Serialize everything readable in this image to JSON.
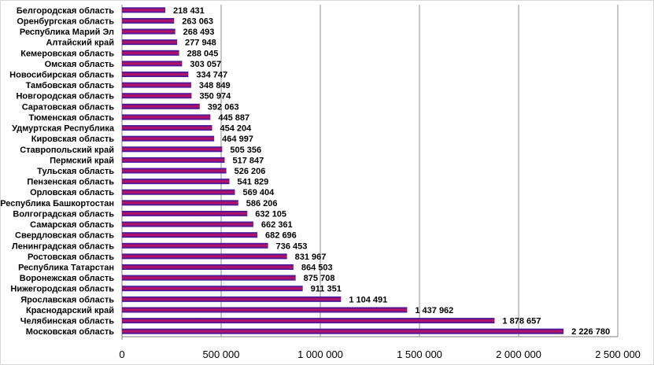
{
  "chart_data": {
    "type": "bar",
    "orientation": "horizontal",
    "categories": [
      "Белгородская область",
      "Оренбургская область",
      "Республика Марий Эл",
      "Алтайский край",
      "Кемеровская область",
      "Омская область",
      "Новосибирская область",
      "Тамбовская область",
      "Новгородская область",
      "Саратовская область",
      "Тюменская область",
      "Удмуртская Республика",
      "Кировская область",
      "Ставропольский край",
      "Пермский край",
      "Тульская область",
      "Пензенская область",
      "Орловская область",
      "Республика Башкортостан",
      "Волгоградская область",
      "Самарская область",
      "Свердловская область",
      "Ленинградская область",
      "Ростовская область",
      "Республика Татарстан",
      "Воронежская область",
      "Нижегородская область",
      "Ярославская область",
      "Краснодарский край",
      "Челябинская область",
      "Московская область"
    ],
    "values": [
      218431,
      263063,
      268493,
      277948,
      288045,
      303057,
      334747,
      348849,
      350974,
      392063,
      445887,
      454204,
      464997,
      505356,
      517847,
      526206,
      541829,
      569404,
      586206,
      632105,
      662361,
      682696,
      736453,
      831967,
      864503,
      875708,
      911351,
      1104491,
      1437962,
      1878657,
      2226780
    ],
    "value_labels": [
      "218 431",
      "263 063",
      "268 493",
      "277 948",
      "288 045",
      "303 057",
      "334 747",
      "348 849",
      "350 974",
      "392 063",
      "445 887",
      "454 204",
      "464 997",
      "505 356",
      "517 847",
      "526 206",
      "541 829",
      "569 404",
      "586 206",
      "632 105",
      "662 361",
      "682 696",
      "736 453",
      "831 967",
      "864 503",
      "875 708",
      "911 351",
      "1 104 491",
      "1 437 962",
      "1 878 657",
      "2 226 780"
    ],
    "xlim": [
      0,
      2500000
    ],
    "xticks": [
      0,
      500000,
      1000000,
      1500000,
      2000000,
      2500000
    ],
    "xtick_labels": [
      "0",
      "500 000",
      "1 000 000",
      "1 500 000",
      "2 000 000",
      "2 500 000"
    ],
    "title": "",
    "xlabel": "",
    "ylabel": "",
    "grid": "vertical",
    "legend": "none",
    "colors": {
      "bar_top": "#2e1aa8",
      "bar_mid": "#c8105e",
      "bar_bottom": "#2e1aa8",
      "gridline": "#8c8c8c",
      "axis": "#7f7f7f"
    }
  }
}
